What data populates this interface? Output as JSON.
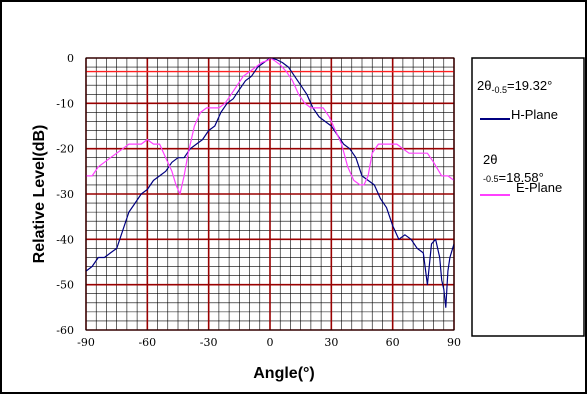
{
  "chart_data": {
    "type": "line",
    "title": "",
    "xlabel": "Angle(°)",
    "ylabel": "Relative Level(dB)",
    "xlim": [
      -90,
      90
    ],
    "ylim": [
      -60,
      0
    ],
    "xticks": [
      "-90",
      "-60",
      "-30",
      "0",
      "30",
      "60",
      "90"
    ],
    "yticks": [
      "0",
      "-10",
      "-20",
      "-30",
      "-40",
      "-50",
      "-60"
    ],
    "grid": true,
    "legend_position": "right",
    "beamwidth_h": {
      "prefix": "2θ",
      "sub": "-0.5",
      "value": "=19.32°"
    },
    "beamwidth_e": {
      "prefix": "2θ",
      "sub": "-0.5",
      "value": "=18.58°"
    },
    "series": [
      {
        "name": "H-Plane",
        "color": "#000080",
        "x": [
          -90,
          -87,
          -84,
          -81,
          -78,
          -75,
          -72,
          -69,
          -66,
          -63,
          -60,
          -57,
          -54,
          -51,
          -48,
          -45,
          -42,
          -39,
          -36,
          -33,
          -30,
          -27,
          -24,
          -21,
          -18,
          -15,
          -12,
          -9,
          -6,
          -3,
          0,
          3,
          6,
          9,
          12,
          15,
          18,
          21,
          24,
          27,
          30,
          33,
          36,
          39,
          42,
          45,
          48,
          51,
          54,
          57,
          60,
          63,
          66,
          69,
          72,
          75,
          77,
          79,
          81,
          83,
          84,
          85,
          86,
          87,
          88,
          90
        ],
        "y": [
          -47,
          -46,
          -44,
          -44,
          -43,
          -42,
          -38,
          -34,
          -32,
          -30,
          -29,
          -27,
          -26,
          -25,
          -23,
          -22,
          -22,
          -20,
          -19,
          -18,
          -16,
          -15,
          -12,
          -10,
          -9,
          -7,
          -5,
          -4,
          -2,
          -1,
          0,
          -0.3,
          -1,
          -2,
          -4,
          -6,
          -8,
          -11,
          -13,
          -14,
          -15,
          -17,
          -19,
          -20,
          -22,
          -26,
          -27,
          -28,
          -31,
          -33,
          -37,
          -40,
          -39,
          -40,
          -42,
          -43,
          -50,
          -41,
          -40,
          -44,
          -49,
          -51,
          -55,
          -47,
          -44,
          -41
        ]
      },
      {
        "name": "E-Plane",
        "color": "#ff40ff",
        "x": [
          -90,
          -87,
          -84,
          -81,
          -78,
          -75,
          -72,
          -69,
          -66,
          -63,
          -60,
          -57,
          -54,
          -51,
          -48,
          -46,
          -44,
          -42,
          -40,
          -37,
          -34,
          -31,
          -28,
          -25,
          -22,
          -19,
          -16,
          -13,
          -10,
          -7,
          -4,
          -1,
          0,
          2,
          5,
          8,
          11,
          14,
          17,
          20,
          23,
          26,
          29,
          32,
          35,
          38,
          41,
          44,
          46,
          48,
          50,
          53,
          56,
          59,
          62,
          65,
          68,
          71,
          74,
          77,
          80,
          84,
          87,
          90
        ],
        "y": [
          -26,
          -26,
          -24,
          -23,
          -22,
          -21,
          -20,
          -19,
          -19,
          -19,
          -18,
          -19,
          -19,
          -22,
          -25,
          -28,
          -30,
          -26,
          -21,
          -15,
          -12,
          -11,
          -11,
          -11,
          -10,
          -8,
          -6,
          -4,
          -3,
          -2,
          -1,
          -0.5,
          0,
          -0.5,
          -1.5,
          -3,
          -5,
          -8,
          -10,
          -11,
          -11,
          -11,
          -13,
          -16,
          -19,
          -24,
          -27,
          -28,
          -28,
          -26,
          -21,
          -19,
          -19,
          -19,
          -19,
          -20,
          -21,
          -21,
          -21,
          -21,
          -23,
          -26,
          -26,
          -27
        ]
      }
    ]
  }
}
